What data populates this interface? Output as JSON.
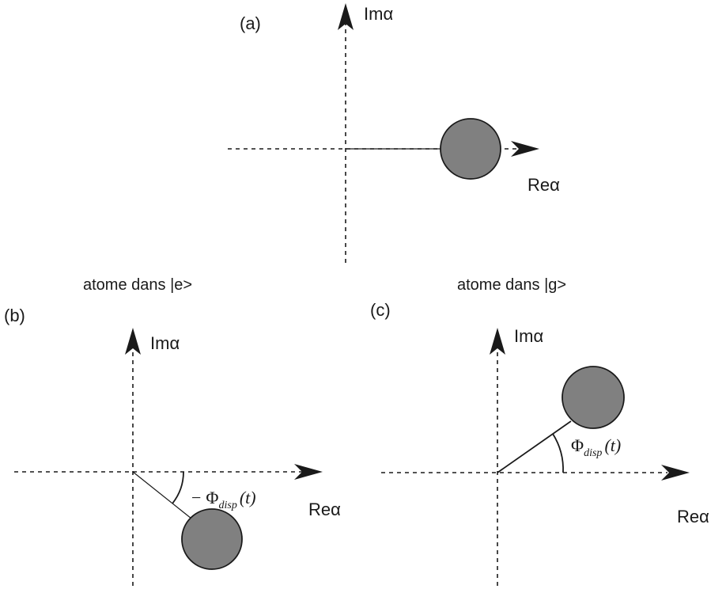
{
  "panels": {
    "a": {
      "label": "(a)",
      "im_axis": "Imα",
      "re_axis": "Reα"
    },
    "b": {
      "caption": "atome dans |e>",
      "label": "(b)",
      "im_axis": "Imα",
      "re_axis": "Reα",
      "angle_prefix": "−",
      "angle_symbol": "Φ",
      "angle_sub": "disp",
      "angle_arg": "(t)"
    },
    "c": {
      "caption": "atome dans |g>",
      "label": "(c)",
      "im_axis": "Imα",
      "re_axis": "Reα",
      "angle_symbol": "Φ",
      "angle_sub": "disp",
      "angle_arg": "(t)"
    }
  },
  "colors": {
    "ink": "#1a1a1a",
    "blob_fill": "#808080"
  }
}
